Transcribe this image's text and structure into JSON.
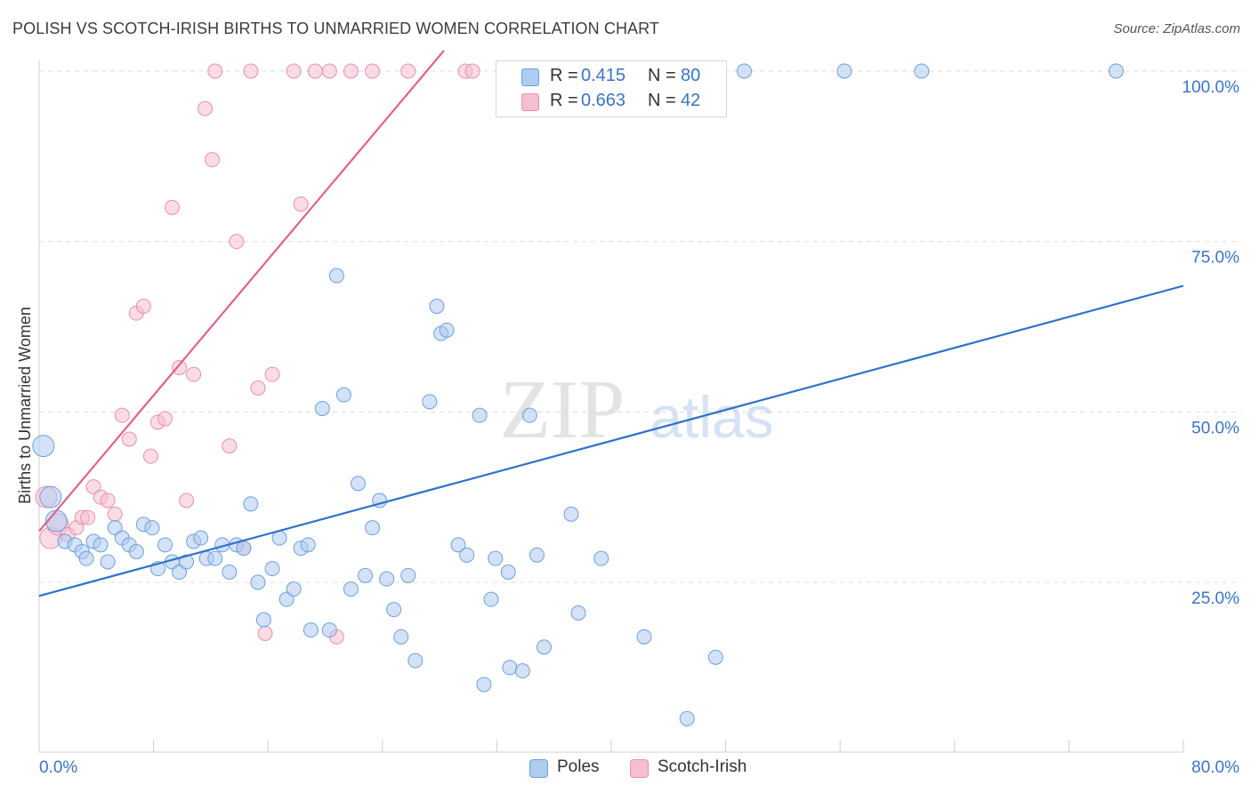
{
  "title": "POLISH VS SCOTCH-IRISH BIRTHS TO UNMARRIED WOMEN CORRELATION CHART",
  "source": "Source: ZipAtlas.com",
  "watermark": {
    "zip": "ZIP",
    "atlas": "atlas"
  },
  "legend": {
    "r_label": "R =",
    "n_label": "N =",
    "poles": {
      "r": "0.415",
      "n": "80"
    },
    "scotch_irish": {
      "r": "0.663",
      "n": "42"
    }
  },
  "colors": {
    "poles_fill": "#aecbf0",
    "poles_stroke": "#6f9fdc",
    "poles_line": "#2f72c9",
    "scotch_fill": "#f6bfd0",
    "scotch_stroke": "#e890ad",
    "scotch_line": "#e0638a",
    "tick_label": "#3b73c5"
  },
  "chart_data": {
    "type": "scatter",
    "title": "POLISH VS SCOTCH-IRISH BIRTHS TO UNMARRIED WOMEN CORRELATION CHART",
    "xlabel": "",
    "ylabel": "Births to Unmarried Women",
    "xlim": [
      0,
      80
    ],
    "ylim": [
      0,
      105
    ],
    "x_tick_labels": [
      "0.0%",
      "80.0%"
    ],
    "y_ticks": [
      25,
      50,
      75,
      100
    ],
    "y_tick_labels": [
      "25.0%",
      "50.0%",
      "75.0%",
      "100.0%"
    ],
    "grid": true,
    "series": [
      {
        "name": "Poles",
        "r": 0.415,
        "n": 80,
        "trendline": {
          "x": [
            0,
            80
          ],
          "y": [
            23.0,
            68.5
          ]
        },
        "points": [
          {
            "x": 0.3,
            "y": 45.0,
            "big": true
          },
          {
            "x": 0.8,
            "y": 37.5,
            "big": true
          },
          {
            "x": 1.2,
            "y": 34.0,
            "big": true
          },
          {
            "x": 1.8,
            "y": 31.0
          },
          {
            "x": 2.5,
            "y": 30.5
          },
          {
            "x": 3.0,
            "y": 29.5
          },
          {
            "x": 3.3,
            "y": 28.5
          },
          {
            "x": 3.8,
            "y": 31.0
          },
          {
            "x": 4.3,
            "y": 30.5
          },
          {
            "x": 4.8,
            "y": 28.0
          },
          {
            "x": 5.3,
            "y": 33.0
          },
          {
            "x": 5.8,
            "y": 31.5
          },
          {
            "x": 6.3,
            "y": 30.5
          },
          {
            "x": 6.8,
            "y": 29.5
          },
          {
            "x": 7.3,
            "y": 33.5
          },
          {
            "x": 7.9,
            "y": 33.0
          },
          {
            "x": 8.3,
            "y": 27.0
          },
          {
            "x": 8.8,
            "y": 30.5
          },
          {
            "x": 9.3,
            "y": 28.0
          },
          {
            "x": 9.8,
            "y": 26.5
          },
          {
            "x": 10.3,
            "y": 28.0
          },
          {
            "x": 10.8,
            "y": 31.0
          },
          {
            "x": 11.3,
            "y": 31.5
          },
          {
            "x": 11.7,
            "y": 28.5
          },
          {
            "x": 12.3,
            "y": 28.5
          },
          {
            "x": 12.8,
            "y": 30.5
          },
          {
            "x": 13.3,
            "y": 26.5
          },
          {
            "x": 13.8,
            "y": 30.5
          },
          {
            "x": 14.3,
            "y": 30.0
          },
          {
            "x": 14.8,
            "y": 36.5
          },
          {
            "x": 15.3,
            "y": 25.0
          },
          {
            "x": 15.7,
            "y": 19.5
          },
          {
            "x": 16.3,
            "y": 27.0
          },
          {
            "x": 16.8,
            "y": 31.5
          },
          {
            "x": 17.3,
            "y": 22.5
          },
          {
            "x": 17.8,
            "y": 24.0
          },
          {
            "x": 18.3,
            "y": 30.0
          },
          {
            "x": 18.8,
            "y": 30.5
          },
          {
            "x": 19.0,
            "y": 18.0
          },
          {
            "x": 19.8,
            "y": 50.5
          },
          {
            "x": 20.3,
            "y": 18.0
          },
          {
            "x": 20.8,
            "y": 70.0
          },
          {
            "x": 21.3,
            "y": 52.5
          },
          {
            "x": 21.8,
            "y": 24.0
          },
          {
            "x": 22.3,
            "y": 39.5
          },
          {
            "x": 22.8,
            "y": 26.0
          },
          {
            "x": 23.3,
            "y": 33.0
          },
          {
            "x": 23.8,
            "y": 37.0
          },
          {
            "x": 24.3,
            "y": 25.5
          },
          {
            "x": 24.8,
            "y": 21.0
          },
          {
            "x": 25.3,
            "y": 17.0
          },
          {
            "x": 25.8,
            "y": 26.0
          },
          {
            "x": 26.3,
            "y": 13.5
          },
          {
            "x": 27.3,
            "y": 51.5
          },
          {
            "x": 27.8,
            "y": 65.5
          },
          {
            "x": 28.1,
            "y": 61.5
          },
          {
            "x": 28.5,
            "y": 62.0
          },
          {
            "x": 29.3,
            "y": 30.5
          },
          {
            "x": 29.9,
            "y": 29.0
          },
          {
            "x": 30.8,
            "y": 49.5
          },
          {
            "x": 31.1,
            "y": 10.0
          },
          {
            "x": 31.6,
            "y": 22.5
          },
          {
            "x": 31.9,
            "y": 28.5
          },
          {
            "x": 32.8,
            "y": 26.5
          },
          {
            "x": 32.9,
            "y": 12.5
          },
          {
            "x": 33.8,
            "y": 12.0
          },
          {
            "x": 34.3,
            "y": 49.5
          },
          {
            "x": 34.8,
            "y": 29.0
          },
          {
            "x": 35.3,
            "y": 15.5
          },
          {
            "x": 37.2,
            "y": 35.0
          },
          {
            "x": 37.7,
            "y": 20.5
          },
          {
            "x": 39.3,
            "y": 28.5
          },
          {
            "x": 42.3,
            "y": 17.0
          },
          {
            "x": 45.3,
            "y": 5.0
          },
          {
            "x": 47.3,
            "y": 14.0
          },
          {
            "x": 49.3,
            "y": 100
          },
          {
            "x": 56.3,
            "y": 100
          },
          {
            "x": 61.7,
            "y": 100
          },
          {
            "x": 75.3,
            "y": 100
          }
        ]
      },
      {
        "name": "Scotch-Irish",
        "r": 0.663,
        "n": 42,
        "trendline": {
          "x": [
            0,
            28.3
          ],
          "y": [
            32.5,
            103.0
          ]
        },
        "points": [
          {
            "x": 0.5,
            "y": 37.5,
            "big": true
          },
          {
            "x": 0.8,
            "y": 31.5,
            "big": true
          },
          {
            "x": 1.3,
            "y": 33.5,
            "big": true
          },
          {
            "x": 2.0,
            "y": 32.0
          },
          {
            "x": 2.6,
            "y": 33.0
          },
          {
            "x": 3.0,
            "y": 34.5
          },
          {
            "x": 3.4,
            "y": 34.5
          },
          {
            "x": 3.8,
            "y": 39.0
          },
          {
            "x": 4.3,
            "y": 37.5
          },
          {
            "x": 4.8,
            "y": 37.0
          },
          {
            "x": 5.3,
            "y": 35.0
          },
          {
            "x": 5.8,
            "y": 49.5
          },
          {
            "x": 6.3,
            "y": 46.0
          },
          {
            "x": 6.8,
            "y": 64.5
          },
          {
            "x": 7.3,
            "y": 65.5
          },
          {
            "x": 7.8,
            "y": 43.5
          },
          {
            "x": 8.3,
            "y": 48.5
          },
          {
            "x": 8.8,
            "y": 49.0
          },
          {
            "x": 9.3,
            "y": 80.0
          },
          {
            "x": 9.8,
            "y": 56.5
          },
          {
            "x": 10.3,
            "y": 37.0
          },
          {
            "x": 10.8,
            "y": 55.5
          },
          {
            "x": 11.6,
            "y": 94.5
          },
          {
            "x": 12.1,
            "y": 87.0
          },
          {
            "x": 12.3,
            "y": 100
          },
          {
            "x": 13.3,
            "y": 45.0
          },
          {
            "x": 13.8,
            "y": 75.0
          },
          {
            "x": 14.3,
            "y": 30.0
          },
          {
            "x": 14.8,
            "y": 100
          },
          {
            "x": 15.3,
            "y": 53.5
          },
          {
            "x": 15.8,
            "y": 17.5
          },
          {
            "x": 16.3,
            "y": 55.5
          },
          {
            "x": 17.8,
            "y": 100
          },
          {
            "x": 18.3,
            "y": 80.5
          },
          {
            "x": 19.3,
            "y": 100
          },
          {
            "x": 20.3,
            "y": 100
          },
          {
            "x": 20.8,
            "y": 17.0
          },
          {
            "x": 21.8,
            "y": 100
          },
          {
            "x": 23.3,
            "y": 100
          },
          {
            "x": 25.8,
            "y": 100
          },
          {
            "x": 29.8,
            "y": 100
          },
          {
            "x": 30.3,
            "y": 100
          }
        ]
      }
    ]
  }
}
